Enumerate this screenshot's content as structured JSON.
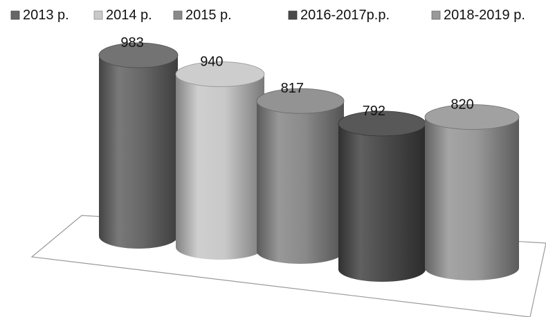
{
  "chart_data": {
    "type": "bar",
    "style": "3d-cylinder",
    "categories": [
      "2013 р.",
      "2014 р.",
      "2015 р.",
      "2016-2017р.р.",
      "2018-2019 р."
    ],
    "values": [
      983,
      940,
      817,
      792,
      820
    ],
    "data_labels": [
      "983",
      "940",
      "817",
      "792",
      "820"
    ],
    "series_colors": [
      "#676767",
      "#c9c9c9",
      "#8a8a8a",
      "#4a4a4a",
      "#999999"
    ],
    "legend_position": "top",
    "grid": false,
    "title": "",
    "xlabel": "",
    "ylabel": ""
  }
}
